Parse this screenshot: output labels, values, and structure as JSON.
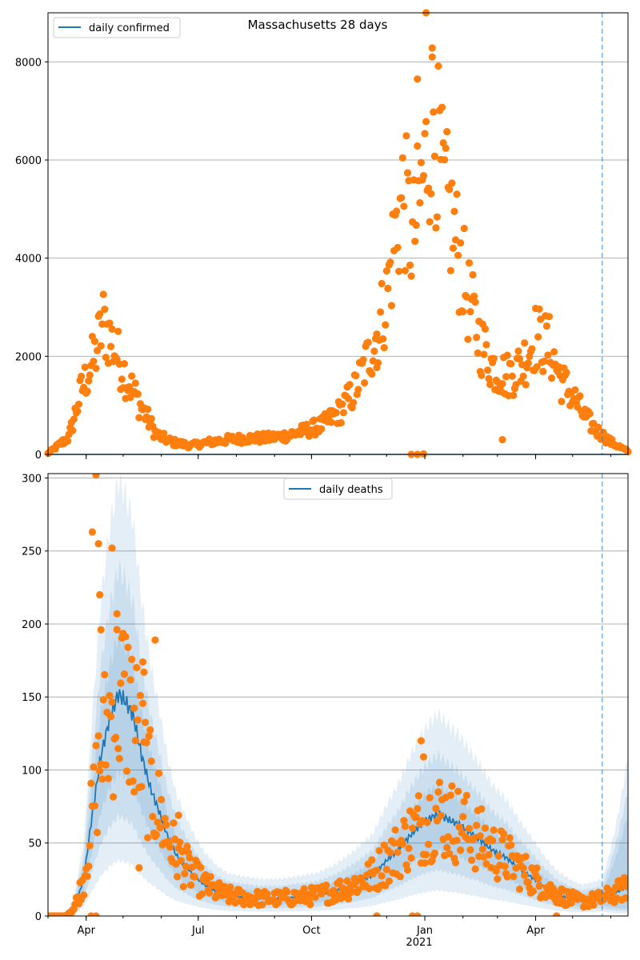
{
  "figure": {
    "title": "Massachusetts 28 days",
    "x_tick_labels": [
      "Apr",
      "Jul",
      "Oct",
      "Jan",
      "Apr"
    ],
    "year_label": "2021",
    "colors": {
      "line": "#1f77b4",
      "dots": "#ff7f0e",
      "band": "#1f77b4",
      "grid": "#b0b0b0",
      "vline": "#1f77b4"
    }
  },
  "chart_data": [
    {
      "type": "scatter",
      "legend": "daily confirmed",
      "legend_position": "top-left",
      "grid": "horizontal",
      "x_domain": [
        "2020-03-01",
        "2021-06-15"
      ],
      "ylim": [
        0,
        9000
      ],
      "y_ticks": [
        0,
        2000,
        4000,
        6000,
        8000
      ],
      "forecast_start": "2021-05-25",
      "trend_points": [
        [
          "2020-03-01",
          20
        ],
        [
          "2020-03-18",
          350
        ],
        [
          "2020-03-28",
          1300
        ],
        [
          "2020-04-08",
          2000
        ],
        [
          "2020-04-15",
          2700
        ],
        [
          "2020-04-25",
          2100
        ],
        [
          "2020-05-05",
          1500
        ],
        [
          "2020-05-15",
          1000
        ],
        [
          "2020-05-28",
          400
        ],
        [
          "2020-06-10",
          250
        ],
        [
          "2020-06-25",
          180
        ],
        [
          "2020-07-10",
          250
        ],
        [
          "2020-07-25",
          300
        ],
        [
          "2020-08-10",
          330
        ],
        [
          "2020-08-25",
          330
        ],
        [
          "2020-09-10",
          380
        ],
        [
          "2020-09-25",
          480
        ],
        [
          "2020-10-10",
          600
        ],
        [
          "2020-10-25",
          900
        ],
        [
          "2020-11-05",
          1300
        ],
        [
          "2020-11-15",
          1900
        ],
        [
          "2020-11-25",
          2600
        ],
        [
          "2020-12-01",
          3200
        ],
        [
          "2020-12-08",
          4500
        ],
        [
          "2020-12-15",
          5300
        ],
        [
          "2020-12-22",
          4300
        ],
        [
          "2020-12-30",
          5500
        ],
        [
          "2021-01-08",
          7000
        ],
        [
          "2021-01-15",
          5500
        ],
        [
          "2021-01-25",
          4500
        ],
        [
          "2021-02-05",
          3200
        ],
        [
          "2021-02-15",
          2300
        ],
        [
          "2021-02-25",
          1800
        ],
        [
          "2021-03-08",
          1600
        ],
        [
          "2021-03-20",
          1800
        ],
        [
          "2021-04-01",
          2400
        ],
        [
          "2021-04-12",
          2200
        ],
        [
          "2021-04-22",
          1500
        ],
        [
          "2021-05-01",
          1200
        ],
        [
          "2021-05-10",
          800
        ],
        [
          "2021-05-20",
          500
        ],
        [
          "2021-06-01",
          250
        ],
        [
          "2021-06-15",
          60
        ]
      ],
      "outliers": [
        [
          "2020-12-21",
          0
        ],
        [
          "2020-12-26",
          0
        ],
        [
          "2020-12-31",
          10
        ],
        [
          "2021-01-07",
          8100
        ],
        [
          "2021-01-02",
          9000
        ],
        [
          "2020-12-26",
          7650
        ],
        [
          "2021-03-05",
          300
        ],
        [
          "2020-11-23",
          1770
        ]
      ]
    },
    {
      "type": "line",
      "legend": "daily deaths",
      "legend_position": "top-center",
      "grid": "horizontal",
      "x_domain": [
        "2020-03-01",
        "2021-06-15"
      ],
      "ylim": [
        0,
        303
      ],
      "y_ticks": [
        0,
        50,
        100,
        150,
        200,
        250,
        300
      ],
      "forecast_start": "2021-05-25",
      "series": [
        {
          "name": "daily deaths",
          "points": [
            [
              "2020-03-01",
              0
            ],
            [
              "2020-03-15",
              0
            ],
            [
              "2020-03-22",
              5
            ],
            [
              "2020-03-30",
              25
            ],
            [
              "2020-04-06",
              70
            ],
            [
              "2020-04-13",
              110
            ],
            [
              "2020-04-20",
              135
            ],
            [
              "2020-04-27",
              152
            ],
            [
              "2020-05-02",
              148
            ],
            [
              "2020-05-09",
              138
            ],
            [
              "2020-05-16",
              110
            ],
            [
              "2020-05-23",
              88
            ],
            [
              "2020-05-30",
              72
            ],
            [
              "2020-06-06",
              55
            ],
            [
              "2020-06-13",
              42
            ],
            [
              "2020-06-20",
              35
            ],
            [
              "2020-06-27",
              28
            ],
            [
              "2020-07-05",
              22
            ],
            [
              "2020-07-15",
              17
            ],
            [
              "2020-07-25",
              14
            ],
            [
              "2020-08-05",
              13
            ],
            [
              "2020-08-20",
              12
            ],
            [
              "2020-09-05",
              12
            ],
            [
              "2020-09-20",
              13
            ],
            [
              "2020-10-05",
              14
            ],
            [
              "2020-10-20",
              17
            ],
            [
              "2020-11-05",
              22
            ],
            [
              "2020-11-20",
              28
            ],
            [
              "2020-12-01",
              38
            ],
            [
              "2020-12-10",
              45
            ],
            [
              "2020-12-20",
              55
            ],
            [
              "2020-12-28",
              62
            ],
            [
              "2021-01-05",
              67
            ],
            [
              "2021-01-12",
              70
            ],
            [
              "2021-01-20",
              66
            ],
            [
              "2021-01-28",
              63
            ],
            [
              "2021-02-05",
              58
            ],
            [
              "2021-02-15",
              52
            ],
            [
              "2021-02-25",
              45
            ],
            [
              "2021-03-08",
              40
            ],
            [
              "2021-03-18",
              33
            ],
            [
              "2021-03-28",
              27
            ],
            [
              "2021-04-08",
              20
            ],
            [
              "2021-04-18",
              15
            ],
            [
              "2021-04-28",
              12
            ],
            [
              "2021-05-08",
              10
            ],
            [
              "2021-05-18",
              11
            ],
            [
              "2021-05-25",
              12
            ],
            [
              "2021-06-05",
              16
            ],
            [
              "2021-06-15",
              20
            ]
          ]
        }
      ],
      "band_scale": [
        [
          0.25,
          1.95
        ],
        [
          0.45,
          1.55
        ],
        [
          0.65,
          1.25
        ]
      ],
      "outliers": [
        [
          "2020-04-09",
          302
        ],
        [
          "2020-04-06",
          263
        ],
        [
          "2020-04-11",
          255
        ],
        [
          "2020-04-22",
          252
        ],
        [
          "2020-04-12",
          220
        ],
        [
          "2020-04-26",
          207
        ],
        [
          "2020-05-27",
          189
        ],
        [
          "2020-04-13",
          196
        ],
        [
          "2020-05-17",
          174
        ],
        [
          "2020-05-18",
          167
        ],
        [
          "2020-05-10",
          85
        ],
        [
          "2020-05-14",
          33
        ],
        [
          "2020-06-15",
          69
        ],
        [
          "2020-04-05",
          0
        ],
        [
          "2020-04-09",
          0
        ],
        [
          "2020-12-22",
          0
        ],
        [
          "2020-12-26",
          0
        ],
        [
          "2020-12-29",
          120
        ],
        [
          "2020-12-31",
          109
        ],
        [
          "2020-11-23",
          0
        ],
        [
          "2021-04-18",
          0
        ]
      ]
    }
  ]
}
